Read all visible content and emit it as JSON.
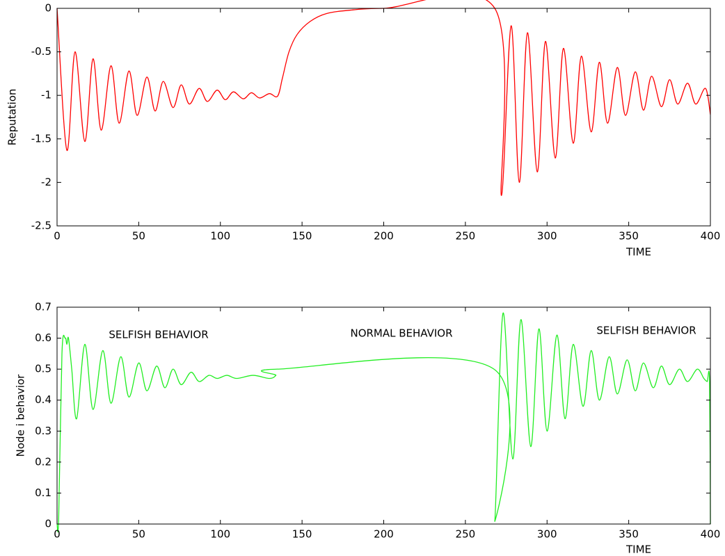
{
  "chart_data": [
    {
      "type": "line",
      "ylabel": "Reputation",
      "xlabel": "TIME",
      "color": "#ff0000",
      "xlim": [
        0,
        400
      ],
      "ylim": [
        -2.5,
        0
      ],
      "xticks": [
        0,
        50,
        100,
        150,
        200,
        250,
        300,
        350,
        400
      ],
      "yticks": [
        0,
        -0.5,
        -1,
        -1.5,
        -2,
        -2.5
      ],
      "x": [
        0,
        6,
        11,
        17,
        22,
        27,
        33,
        38,
        44,
        49,
        55,
        60,
        65,
        71,
        76,
        81,
        87,
        92,
        98,
        103,
        108,
        114,
        119,
        124,
        130,
        135,
        138,
        142,
        147,
        155,
        165,
        180,
        200,
        268,
        272,
        278,
        283,
        288,
        294,
        299,
        305,
        310,
        316,
        321,
        327,
        332,
        337,
        343,
        348,
        354,
        359,
        364,
        370,
        375,
        380,
        386,
        391,
        397,
        400
      ],
      "values": [
        0,
        -1.63,
        -0.5,
        -1.53,
        -0.58,
        -1.4,
        -0.66,
        -1.32,
        -0.72,
        -1.23,
        -0.79,
        -1.18,
        -0.84,
        -1.14,
        -0.88,
        -1.1,
        -0.92,
        -1.07,
        -0.94,
        -1.05,
        -0.96,
        -1.04,
        -0.97,
        -1.03,
        -0.98,
        -1.01,
        -0.8,
        -0.5,
        -0.3,
        -0.15,
        -0.06,
        -0.02,
        0,
        0,
        -2.15,
        -0.2,
        -2.0,
        -0.28,
        -1.88,
        -0.38,
        -1.72,
        -0.46,
        -1.55,
        -0.55,
        -1.42,
        -0.62,
        -1.32,
        -0.68,
        -1.23,
        -0.73,
        -1.17,
        -0.78,
        -1.13,
        -0.82,
        -1.1,
        -0.86,
        -1.1,
        -0.92,
        -1.22
      ]
    },
    {
      "type": "line",
      "ylabel": "Node i behavior",
      "xlabel": "TIME",
      "color": "#22ee22",
      "xlim": [
        0,
        400
      ],
      "ylim": [
        0,
        0.7
      ],
      "xticks": [
        0,
        50,
        100,
        150,
        200,
        250,
        300,
        350,
        400
      ],
      "yticks": [
        0,
        0.1,
        0.2,
        0.3,
        0.4,
        0.5,
        0.6,
        0.7
      ],
      "annotations": [
        "SELFISH BEHAVIOR",
        "NORMAL BEHAVIOR",
        "SELFISH BEHAVIOR"
      ],
      "x": [
        0,
        1,
        3,
        5,
        6,
        7,
        9,
        12,
        17,
        22,
        28,
        33,
        39,
        44,
        50,
        55,
        61,
        66,
        71,
        76,
        82,
        87,
        93,
        98,
        104,
        110,
        120,
        130,
        134,
        135,
        267.5,
        268,
        273,
        279,
        284,
        290,
        295,
        300,
        306,
        311,
        316,
        322,
        327,
        332,
        338,
        343,
        349,
        354,
        359,
        365,
        370,
        375,
        381,
        386,
        392,
        396,
        398,
        399.5,
        400
      ],
      "values": [
        0,
        0.02,
        0.55,
        0.6,
        0.58,
        0.6,
        0.5,
        0.34,
        0.58,
        0.37,
        0.56,
        0.39,
        0.54,
        0.41,
        0.52,
        0.43,
        0.51,
        0.44,
        0.5,
        0.45,
        0.49,
        0.46,
        0.48,
        0.47,
        0.48,
        0.47,
        0.48,
        0.47,
        0.48,
        0.5,
        0.5,
        0.01,
        0.68,
        0.21,
        0.66,
        0.25,
        0.63,
        0.3,
        0.61,
        0.34,
        0.58,
        0.38,
        0.56,
        0.4,
        0.54,
        0.42,
        0.53,
        0.43,
        0.52,
        0.44,
        0.51,
        0.45,
        0.5,
        0.46,
        0.5,
        0.47,
        0.46,
        0.46,
        0
      ]
    }
  ]
}
